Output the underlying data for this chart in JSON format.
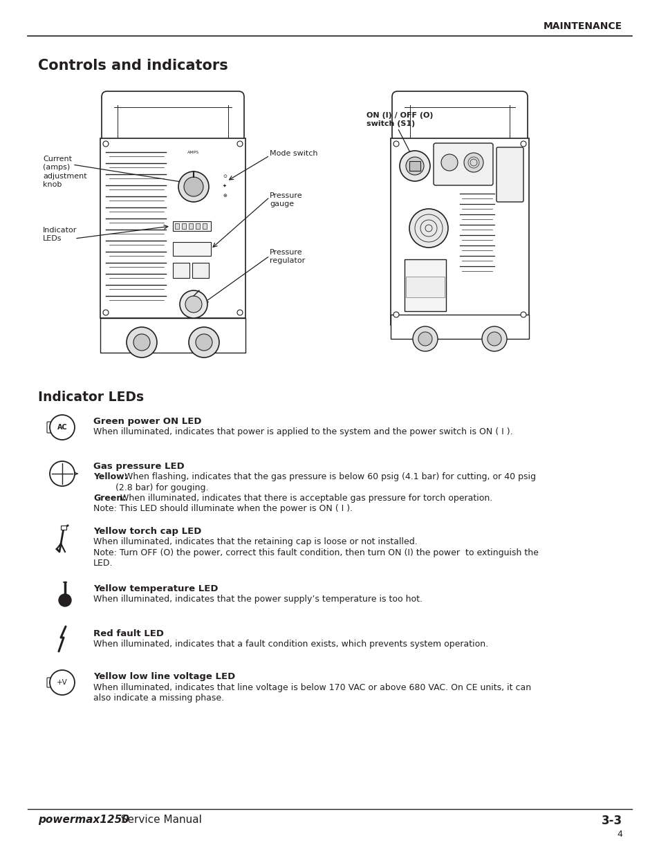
{
  "page_header": "MAINTENANCE",
  "section_title": "Controls and indicators",
  "subsection_title": "Indicator LEDs",
  "footer_brand": "powermax1250",
  "footer_text": "  Service Manual",
  "footer_page": "3-3",
  "footer_num": "4",
  "background_color": "#ffffff",
  "text_color": "#231f20",
  "led_entries": [
    {
      "icon_type": "ac_circle",
      "title": "Green power ON LED",
      "body_lines": [
        {
          "bold": false,
          "text": "When illuminated, indicates that power is applied to the system and the power switch is ON ( I )."
        }
      ]
    },
    {
      "icon_type": "gas_circle",
      "title": "Gas pressure LED",
      "body_lines": [
        {
          "bold": true,
          "bold_word": "Yellow:",
          "text": " When flashing, indicates that the gas pressure is below 60 psig (4.1 bar) for cutting, or 40 psig"
        },
        {
          "bold": false,
          "text": "        (2.8 bar) for gouging."
        },
        {
          "bold": true,
          "bold_word": "Green:",
          "text": " When illuminated, indicates that there is acceptable gas pressure for torch operation."
        },
        {
          "bold": false,
          "text": "Note: This LED should illuminate when the power is ON ( I )."
        }
      ]
    },
    {
      "icon_type": "torch_cap",
      "title": "Yellow torch cap LED",
      "body_lines": [
        {
          "bold": false,
          "text": "When illuminated, indicates that the retaining cap is loose or not installed."
        },
        {
          "bold": false,
          "text": "Note: Turn OFF (O) the power, correct this fault condition, then turn ON (I) the power  to extinguish the"
        },
        {
          "bold": false,
          "text": "LED."
        }
      ]
    },
    {
      "icon_type": "temperature",
      "title": "Yellow temperature LED",
      "body_lines": [
        {
          "bold": false,
          "text": "When illuminated, indicates that the power supply’s temperature is too hot."
        }
      ]
    },
    {
      "icon_type": "fault",
      "title": "Red fault LED",
      "body_lines": [
        {
          "bold": false,
          "text": "When illuminated, indicates that a fault condition exists, which prevents system operation."
        }
      ]
    },
    {
      "icon_type": "voltage",
      "title": "Yellow low line voltage LED",
      "body_lines": [
        {
          "bold": false,
          "text": "When illuminated, indicates that line voltage is below 170 VAC or above 680 VAC. On CE units, it can"
        },
        {
          "bold": false,
          "text": "also indicate a missing phase."
        }
      ]
    }
  ]
}
